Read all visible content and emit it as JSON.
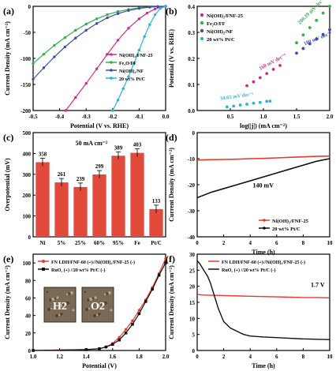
{
  "panel_labels": [
    "(a)",
    "(b)",
    "(c)",
    "(d)",
    "(e)",
    "(f)"
  ],
  "photo_labels": [
    "H2",
    "O2"
  ],
  "chart_data": [
    {
      "panel": "(a)",
      "type": "line",
      "xlabel": "Potential (V vs. RHE)",
      "ylabel": "Current Density (mA cm⁻²)",
      "xlim": [
        -0.5,
        0.0
      ],
      "ylim": [
        -200,
        0
      ],
      "xticks": [
        "-0.5",
        "-0.4",
        "-0.3",
        "-0.2",
        "-0.1",
        "0.0"
      ],
      "yticks": [
        "0",
        "-50",
        "-100",
        "-150",
        "-200"
      ],
      "legend_position": "right",
      "series": [
        {
          "name": "Ni(OH)₂/FNF-25",
          "color": "#cc2f8a",
          "marker": "circle",
          "x": [
            -0.377,
            -0.34,
            -0.3,
            -0.26,
            -0.22,
            -0.18,
            -0.14,
            -0.1,
            -0.07,
            -0.04,
            -0.02,
            0.0
          ],
          "y": [
            -200,
            -175,
            -148,
            -120,
            -92,
            -65,
            -42,
            -24,
            -13,
            -5,
            -2,
            0
          ]
        },
        {
          "name": "Fe₂O/FF",
          "color": "#2fb34a",
          "marker": "circle",
          "x": [
            -0.5,
            -0.46,
            -0.42,
            -0.38,
            -0.34,
            -0.3,
            -0.26,
            -0.22,
            -0.18,
            -0.14,
            -0.1,
            -0.06,
            -0.03,
            0.0
          ],
          "y": [
            -110,
            -92,
            -75,
            -60,
            -46,
            -34,
            -24,
            -16,
            -10,
            -6,
            -3,
            -1,
            -0.5,
            0
          ]
        },
        {
          "name": "Ni(OH)₂/NF",
          "color": "#3c4fa8",
          "marker": "circle",
          "x": [
            -0.5,
            -0.46,
            -0.42,
            -0.38,
            -0.34,
            -0.3,
            -0.26,
            -0.22,
            -0.18,
            -0.14,
            -0.1,
            -0.06,
            -0.03,
            0.0
          ],
          "y": [
            -140,
            -118,
            -97,
            -78,
            -61,
            -46,
            -33,
            -22,
            -14,
            -8,
            -4,
            -1.5,
            -0.5,
            0
          ]
        },
        {
          "name": "20 wt% Pt/C",
          "color": "#27b6d9",
          "marker": "circle",
          "x": [
            -0.2,
            -0.18,
            -0.16,
            -0.14,
            -0.12,
            -0.1,
            -0.08,
            -0.06,
            -0.04,
            -0.02,
            0.0
          ],
          "y": [
            -200,
            -180,
            -158,
            -135,
            -110,
            -84,
            -58,
            -35,
            -16,
            -4,
            0
          ]
        }
      ]
    },
    {
      "panel": "(b)",
      "type": "scatter",
      "xlabel": "log(|j|) (mA cm⁻²)",
      "ylabel": "Potential (V vs. RHE)",
      "xlim": [
        0.0,
        2.0
      ],
      "ylim": [
        0.0,
        0.4
      ],
      "xticks": [
        "0.5",
        "1.0",
        "1.5",
        "2.0"
      ],
      "yticks": [
        "0.0",
        "0.1",
        "0.2",
        "0.3",
        "0.4"
      ],
      "legend_position": "top-left",
      "annotations": [
        "160 mV dec⁻¹",
        "280.19 mV dec⁻¹",
        "180 mV dec⁻¹",
        "34.65 mV dec⁻¹"
      ],
      "series": [
        {
          "name": "Ni(OH)₂/FNF-25",
          "color": "#cc2f8a",
          "x": [
            0.75,
            0.85,
            0.95,
            1.05,
            1.15,
            1.25
          ],
          "y": [
            0.095,
            0.11,
            0.126,
            0.142,
            0.158,
            0.173
          ]
        },
        {
          "name": "Fe₂O/FF",
          "color": "#2fb34a",
          "x": [
            1.5,
            1.6,
            1.7,
            1.8,
            1.9,
            2.0
          ],
          "y": [
            0.26,
            0.29,
            0.318,
            0.346,
            0.374,
            0.4
          ]
        },
        {
          "name": "Ni(OH)₂/NF",
          "color": "#3c4fa8",
          "x": [
            1.5,
            1.6,
            1.7,
            1.8,
            1.9,
            2.0
          ],
          "y": [
            0.22,
            0.238,
            0.256,
            0.274,
            0.292,
            0.31
          ]
        },
        {
          "name": "20 wt% Pt/C",
          "color": "#27b6d9",
          "x": [
            0.45,
            0.55,
            0.65,
            0.75,
            0.85,
            0.95,
            1.05,
            1.1
          ],
          "y": [
            0.014,
            0.017,
            0.021,
            0.024,
            0.028,
            0.031,
            0.035,
            0.036
          ]
        }
      ]
    },
    {
      "panel": "(c)",
      "type": "bar",
      "title": "50 mA cm⁻²",
      "ylabel": "Overpotential (mV)",
      "ylim": [
        0,
        500
      ],
      "yticks": [
        "0",
        "100",
        "200",
        "300",
        "400",
        "500"
      ],
      "categories": [
        "Ni",
        "5%",
        "25%",
        "60%",
        "95%",
        "Fe",
        "Pt/C"
      ],
      "values": [
        358,
        261,
        239,
        299,
        389,
        403,
        133
      ],
      "value_labels": [
        "358",
        "261",
        "239",
        "299",
        "389",
        "403",
        "133"
      ],
      "color": "#e24a3b"
    },
    {
      "panel": "(d)",
      "type": "line",
      "xlabel": "Time (h)",
      "ylabel": "Current Density (mA cm⁻²)",
      "xlim": [
        0,
        10
      ],
      "ylim": [
        -40,
        0
      ],
      "xticks": [
        "0",
        "2",
        "4",
        "6",
        "8",
        "10"
      ],
      "yticks": [
        "0",
        "-10",
        "-20",
        "-30",
        "-40"
      ],
      "annotation": "140 mV",
      "legend_position": "bottom-right",
      "series": [
        {
          "name": "Ni(OH)₂/FNF-25",
          "color": "#e8392d",
          "x": [
            0,
            1,
            2,
            3,
            4,
            5,
            6,
            7,
            8,
            9,
            10
          ],
          "y": [
            -10.5,
            -10.4,
            -10.3,
            -10.2,
            -10.0,
            -9.9,
            -9.7,
            -9.5,
            -9.3,
            -9.1,
            -9.0
          ]
        },
        {
          "name": "20 wt% Pt/C",
          "color": "#111111",
          "x": [
            0,
            1,
            2,
            3,
            4,
            5,
            6,
            7,
            8,
            9,
            10
          ],
          "y": [
            -25,
            -23,
            -21.5,
            -20,
            -18.5,
            -17,
            -15.5,
            -14,
            -12.5,
            -11,
            -10
          ]
        }
      ]
    },
    {
      "panel": "(e)",
      "type": "line",
      "xlabel": "Potential (V)",
      "ylabel": "Current Density (mA cm⁻²)",
      "xlim": [
        1.0,
        2.0
      ],
      "ylim": [
        0,
        110
      ],
      "xticks": [
        "1.0",
        "1.2",
        "1.4",
        "1.6",
        "1.8",
        "2.0"
      ],
      "yticks": [
        "0",
        "20",
        "40",
        "60",
        "80",
        "100"
      ],
      "legend_position": "top-left",
      "series": [
        {
          "name": "FN LDH/FNF-60 (+)//Ni(OH)₂/FNF-25 (-)",
          "color": "#e8392d",
          "marker": "circle",
          "x": [
            1.0,
            1.4,
            1.5,
            1.55,
            1.6,
            1.65,
            1.7,
            1.75,
            1.8,
            1.85,
            1.9,
            1.95,
            2.0
          ],
          "y": [
            0,
            1,
            2,
            4,
            8,
            15,
            24,
            34,
            46,
            58,
            72,
            88,
            105
          ]
        },
        {
          "name": "RuO₂ (+) //20 wt% Pt/C (-)",
          "color": "#111111",
          "marker": "square",
          "x": [
            1.0,
            1.4,
            1.5,
            1.55,
            1.6,
            1.65,
            1.7,
            1.75,
            1.8,
            1.85,
            1.9,
            1.95,
            2.0
          ],
          "y": [
            0,
            1,
            2,
            4,
            7,
            12,
            20,
            30,
            42,
            56,
            70,
            86,
            100
          ]
        }
      ]
    },
    {
      "panel": "(f)",
      "type": "line",
      "xlabel": "Time (h)",
      "ylabel": "Current Density (mA cm⁻²)",
      "xlim": [
        0,
        10
      ],
      "ylim": [
        0,
        30
      ],
      "xticks": [
        "0",
        "2",
        "4",
        "6",
        "8",
        "10"
      ],
      "yticks": [
        "0",
        "5",
        "10",
        "15",
        "20",
        "25",
        "30"
      ],
      "annotation": "1.7 V",
      "legend_position": "top-right",
      "series": [
        {
          "name": "FN LDH/FNF-60 (+)//Ni(OH)₂/FNF-25 (-)",
          "color": "#e8392d",
          "x": [
            0,
            0.3,
            1,
            2,
            3,
            4,
            5,
            6,
            7,
            8,
            9,
            10
          ],
          "y": [
            17.5,
            17.3,
            17.2,
            17.1,
            17.0,
            16.9,
            16.8,
            16.7,
            16.6,
            16.5,
            16.5,
            16.4
          ]
        },
        {
          "name": "RuO₂ (+) //20 wt% Pt/C (-)",
          "color": "#111111",
          "x": [
            0,
            0.2,
            0.5,
            0.8,
            1.0,
            1.3,
            1.6,
            2.0,
            2.5,
            3.0,
            3.5,
            4.0,
            5.0,
            6.0,
            7.0,
            8.0,
            9.0,
            10.0
          ],
          "y": [
            28,
            27,
            25,
            23,
            21,
            17,
            13,
            9,
            7,
            6,
            5,
            4.5,
            4.2,
            4.0,
            3.8,
            3.6,
            3.5,
            3.4
          ]
        }
      ]
    }
  ]
}
